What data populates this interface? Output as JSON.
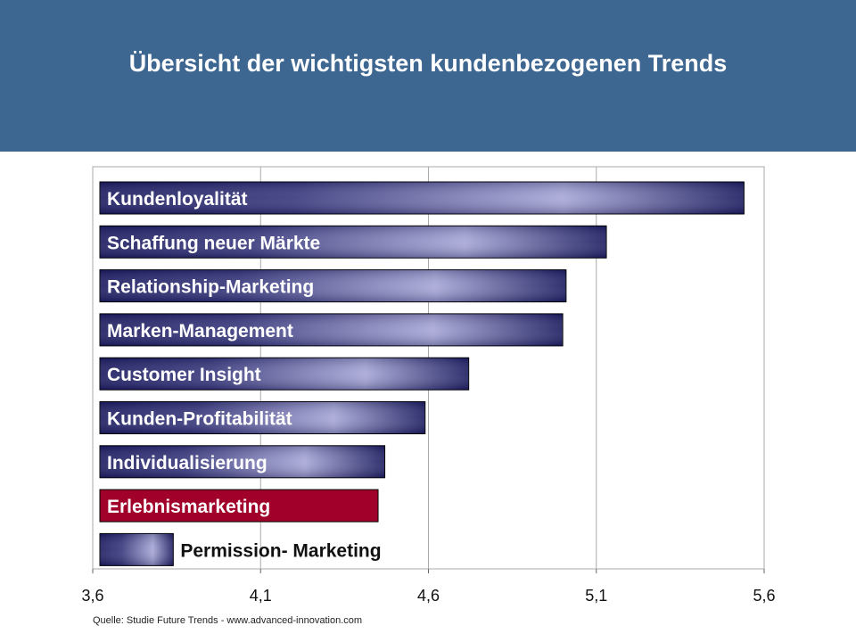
{
  "header": {
    "title": "Übersicht der wichtigsten kundenbezogenen Trends"
  },
  "source_text": "Quelle: Studie Future Trends - www.advanced-innovation.com",
  "colors": {
    "header_bg": "#3d6690",
    "bar_dark": "#1f1f63",
    "bar_light": "#a8a8d8",
    "highlight_bar": "#a0002a",
    "grid": "#aaaaaa"
  },
  "chart_data": {
    "type": "bar",
    "orientation": "horizontal",
    "title": "",
    "xlabel": "",
    "ylabel": "",
    "xlim": [
      3.6,
      5.6
    ],
    "x_ticks": [
      "3,6",
      "4,1",
      "4,6",
      "5,1",
      "5,6"
    ],
    "x_tick_values": [
      3.6,
      4.1,
      4.6,
      5.1,
      5.6
    ],
    "grid": "vertical",
    "categories": [
      "Kundenloyalität",
      "Schaffung neuer Märkte",
      "Relationship-Marketing",
      "Marken-Management",
      "Customer Insight",
      "Kunden-Profitabilität",
      "Individualisierung",
      "Erlebnismarketing",
      "Permission- Marketing"
    ],
    "values": [
      5.54,
      5.13,
      5.01,
      5.0,
      4.72,
      4.59,
      4.47,
      4.45,
      3.84
    ],
    "highlighted": "Erlebnismarketing"
  }
}
